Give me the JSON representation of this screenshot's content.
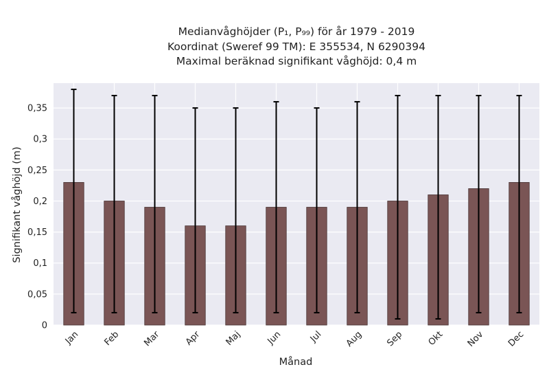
{
  "chart_data": {
    "type": "bar",
    "title": [
      "Medianvåghöjder (P₁, P₉₉) för år 1979 - 2019",
      "Koordinat (Sweref 99 TM): E 355534, N 6290394",
      "Maximal beräknad signifikant våghöjd: 0,4 m"
    ],
    "xlabel": "Månad",
    "ylabel": "Signifikant våghöjd (m)",
    "categories": [
      "Jan",
      "Feb",
      "Mar",
      "Apr",
      "Maj",
      "Jun",
      "Jul",
      "Aug",
      "Sep",
      "Okt",
      "Nov",
      "Dec"
    ],
    "values": [
      0.23,
      0.2,
      0.19,
      0.16,
      0.16,
      0.19,
      0.19,
      0.19,
      0.2,
      0.21,
      0.22,
      0.23
    ],
    "error_low": [
      0.02,
      0.02,
      0.02,
      0.02,
      0.02,
      0.02,
      0.02,
      0.02,
      0.01,
      0.01,
      0.02,
      0.02
    ],
    "error_high": [
      0.38,
      0.37,
      0.37,
      0.35,
      0.35,
      0.36,
      0.35,
      0.36,
      0.37,
      0.37,
      0.37,
      0.37
    ],
    "ylim": [
      0,
      0.39
    ],
    "yticks": [
      "0",
      "0,05",
      "0,1",
      "0,15",
      "0,2",
      "0,25",
      "0,3",
      "0,35"
    ],
    "grid": true,
    "colors": {
      "plot_background": "#eaeaf2",
      "grid": "#ffffff",
      "bar_fill": "#7a5555",
      "bar_edge": "#4a3535",
      "error_bar": "#000000"
    }
  }
}
